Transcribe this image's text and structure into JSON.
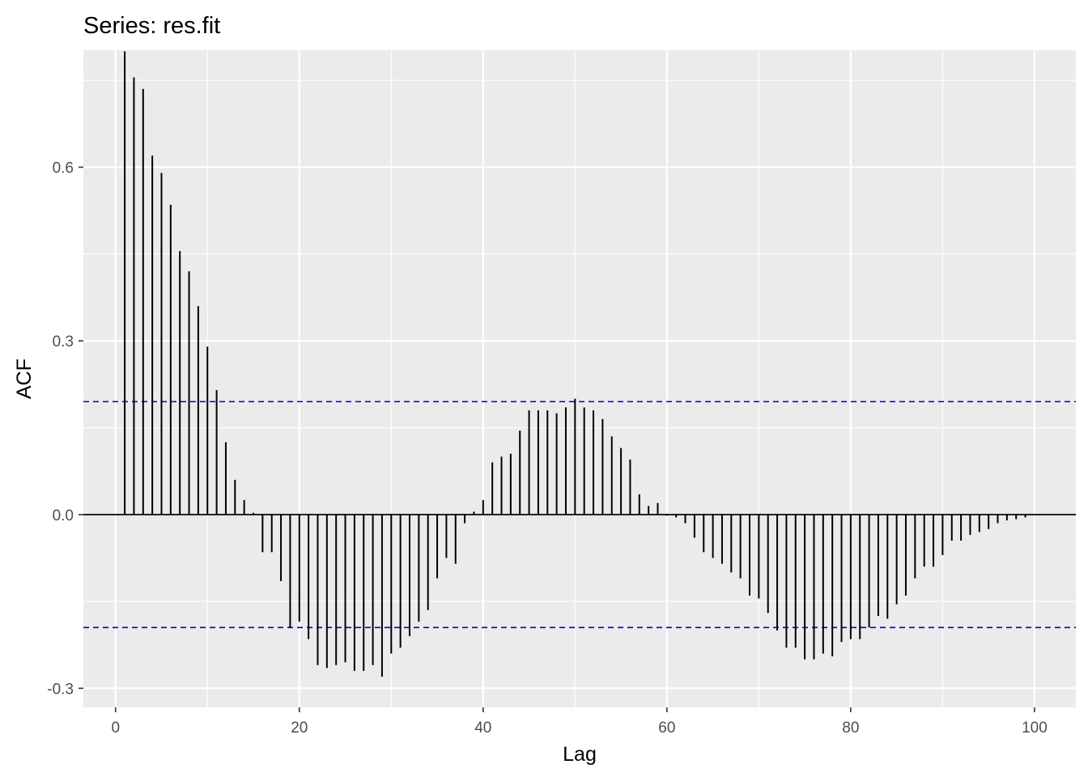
{
  "chart_data": {
    "type": "bar",
    "subtype": "acf-stem",
    "title": "Series: res.fit",
    "xlabel": "Lag",
    "ylabel": "ACF",
    "xlim": [
      -3.5,
      104.5
    ],
    "ylim": [
      -0.333,
      0.802
    ],
    "x_ticks": [
      0,
      20,
      40,
      60,
      80,
      100
    ],
    "x_tick_labels": [
      "0",
      "20",
      "40",
      "60",
      "80",
      "100"
    ],
    "y_ticks": [
      -0.3,
      0.0,
      0.3,
      0.6
    ],
    "y_tick_labels": [
      "-0.3",
      "0.0",
      "0.3",
      "0.6"
    ],
    "grid": true,
    "confidence_bounds": [
      0.195,
      -0.195
    ],
    "colors": {
      "panel": "#ebebeb",
      "grid": "#ffffff",
      "bar": "#000000",
      "bound": "#0000cc",
      "zero_line": "#000000"
    },
    "series": [
      {
        "lags": [
          1,
          2,
          3,
          4,
          5,
          6,
          7,
          8,
          9,
          10,
          11,
          12,
          13,
          14,
          15,
          16,
          17,
          18,
          19,
          20,
          21,
          22,
          23,
          24,
          25,
          26,
          27,
          28,
          29,
          30,
          31,
          32,
          33,
          34,
          35,
          36,
          37,
          38,
          39,
          40,
          41,
          42,
          43,
          44,
          45,
          46,
          47,
          48,
          49,
          50,
          51,
          52,
          53,
          54,
          55,
          56,
          57,
          58,
          59,
          60,
          61,
          62,
          63,
          64,
          65,
          66,
          67,
          68,
          69,
          70,
          71,
          72,
          73,
          74,
          75,
          76,
          77,
          78,
          79,
          80,
          81,
          82,
          83,
          84,
          85,
          86,
          87,
          88,
          89,
          90,
          91,
          92,
          93,
          94,
          95,
          96,
          97,
          98,
          99
        ],
        "values": [
          0.8,
          0.755,
          0.735,
          0.62,
          0.59,
          0.535,
          0.455,
          0.42,
          0.36,
          0.29,
          0.215,
          0.125,
          0.06,
          0.025,
          0.003,
          -0.065,
          -0.065,
          -0.115,
          -0.195,
          -0.185,
          -0.215,
          -0.26,
          -0.265,
          -0.26,
          -0.255,
          -0.27,
          -0.27,
          -0.26,
          -0.28,
          -0.24,
          -0.23,
          -0.21,
          -0.185,
          -0.165,
          -0.11,
          -0.075,
          -0.085,
          -0.015,
          0.005,
          0.025,
          0.09,
          0.1,
          0.105,
          0.145,
          0.18,
          0.18,
          0.18,
          0.175,
          0.185,
          0.2,
          0.185,
          0.18,
          0.165,
          0.135,
          0.115,
          0.095,
          0.035,
          0.015,
          0.02,
          -0.002,
          -0.005,
          -0.015,
          -0.04,
          -0.065,
          -0.075,
          -0.085,
          -0.1,
          -0.11,
          -0.14,
          -0.145,
          -0.17,
          -0.2,
          -0.23,
          -0.23,
          -0.25,
          -0.25,
          -0.24,
          -0.245,
          -0.22,
          -0.215,
          -0.215,
          -0.195,
          -0.175,
          -0.18,
          -0.155,
          -0.14,
          -0.11,
          -0.09,
          -0.09,
          -0.07,
          -0.045,
          -0.045,
          -0.035,
          -0.03,
          -0.025,
          -0.015,
          -0.01,
          -0.008,
          -0.005
        ]
      }
    ]
  }
}
